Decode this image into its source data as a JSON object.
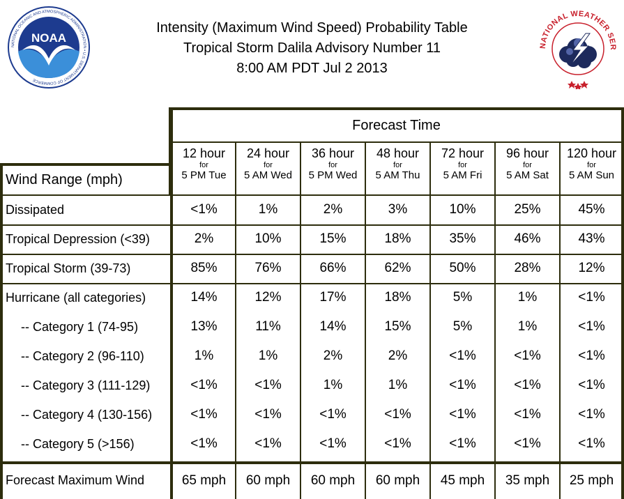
{
  "header": {
    "line1": "Intensity (Maximum Wind Speed) Probability Table",
    "line2": "Tropical Storm Dalila Advisory Number 11",
    "line3": "8:00 AM PDT Jul 2 2013"
  },
  "logos": {
    "noaa_text": "NOAA",
    "noaa_ring": "NATIONAL OCEANIC AND ATMOSPHERIC ADMINISTRATION • U.S. DEPARTMENT OF COMMERCE",
    "nws_ring": "NATIONAL WEATHER SERVICE"
  },
  "colors": {
    "border": "#2d2d0d",
    "noaa_blue": "#1d3b8f",
    "nws_red": "#c8202c",
    "nws_navy": "#1d2a5c"
  },
  "table": {
    "forecast_time_label": "Forecast Time",
    "row_header_label": "Wind Range (mph)",
    "columns": [
      {
        "hours": "12 hour",
        "for": "for",
        "when": "5 PM Tue"
      },
      {
        "hours": "24 hour",
        "for": "for",
        "when": "5 AM Wed"
      },
      {
        "hours": "36 hour",
        "for": "for",
        "when": "5 PM Wed"
      },
      {
        "hours": "48 hour",
        "for": "for",
        "when": "5 AM Thu"
      },
      {
        "hours": "72 hour",
        "for": "for",
        "when": "5 AM Fri"
      },
      {
        "hours": "96 hour",
        "for": "for",
        "when": "5 AM Sat"
      },
      {
        "hours": "120 hour",
        "for": "for",
        "when": "5 AM Sun"
      }
    ],
    "rows": [
      {
        "label": "Dissipated",
        "values": [
          "<1%",
          "1%",
          "2%",
          "3%",
          "10%",
          "25%",
          "45%"
        ]
      },
      {
        "label": "Tropical Depression (<39)",
        "values": [
          "2%",
          "10%",
          "15%",
          "18%",
          "35%",
          "46%",
          "43%"
        ]
      },
      {
        "label": "Tropical Storm (39-73)",
        "values": [
          "85%",
          "76%",
          "66%",
          "62%",
          "50%",
          "28%",
          "12%"
        ]
      },
      {
        "label": "Hurricane (all categories)",
        "values": [
          "14%",
          "12%",
          "17%",
          "18%",
          "5%",
          "1%",
          "<1%"
        ]
      },
      {
        "label": "-- Category 1 (74-95)",
        "values": [
          "13%",
          "11%",
          "14%",
          "15%",
          "5%",
          "1%",
          "<1%"
        ]
      },
      {
        "label": "-- Category 2 (96-110)",
        "values": [
          "1%",
          "1%",
          "2%",
          "2%",
          "<1%",
          "<1%",
          "<1%"
        ]
      },
      {
        "label": "-- Category 3 (111-129)",
        "values": [
          "<1%",
          "<1%",
          "1%",
          "1%",
          "<1%",
          "<1%",
          "<1%"
        ]
      },
      {
        "label": "-- Category 4 (130-156)",
        "values": [
          "<1%",
          "<1%",
          "<1%",
          "<1%",
          "<1%",
          "<1%",
          "<1%"
        ]
      },
      {
        "label": "-- Category 5 (>156)",
        "values": [
          "<1%",
          "<1%",
          "<1%",
          "<1%",
          "<1%",
          "<1%",
          "<1%"
        ]
      },
      {
        "label": "Forecast Maximum Wind",
        "values": [
          "65 mph",
          "60 mph",
          "60 mph",
          "60 mph",
          "45 mph",
          "35 mph",
          "25 mph"
        ]
      }
    ]
  }
}
